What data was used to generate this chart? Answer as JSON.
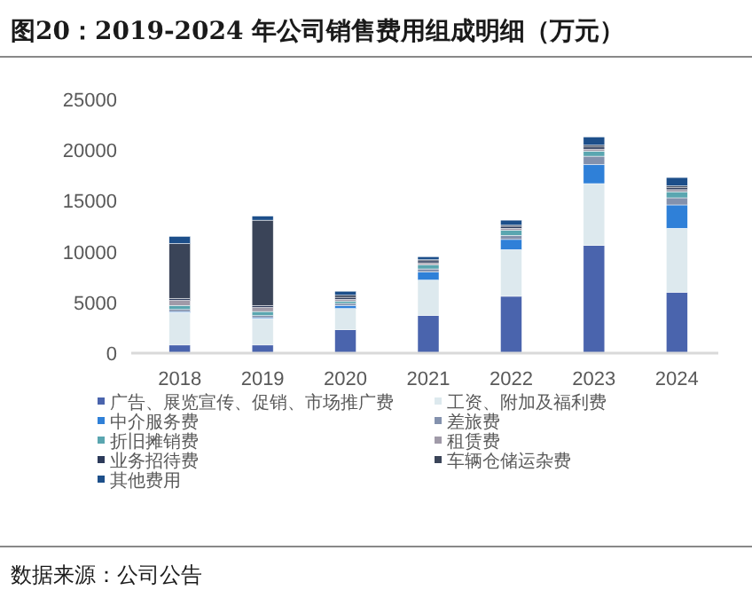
{
  "chart_data": {
    "type": "bar",
    "stacked": true,
    "title": "图20：2019-2024 年公司销售费用组成明细（万元）",
    "categories": [
      "2018",
      "2019",
      "2020",
      "2021",
      "2022",
      "2023",
      "2024"
    ],
    "series": [
      {
        "name": "广告、展览宣传、促销、市场推广费",
        "color": "#4a64ad",
        "values": [
          800,
          800,
          2300,
          3700,
          5600,
          10600,
          6000
        ]
      },
      {
        "name": "工资、附加及福利费",
        "color": "#dde9ee",
        "values": [
          3200,
          2600,
          2100,
          3500,
          4600,
          6100,
          6300
        ]
      },
      {
        "name": "中介服务费",
        "color": "#2f80d8",
        "values": [
          100,
          100,
          300,
          800,
          1000,
          1900,
          2300
        ]
      },
      {
        "name": "差旅费",
        "color": "#8391ad",
        "values": [
          200,
          200,
          200,
          300,
          400,
          800,
          700
        ]
      },
      {
        "name": "折旧摊销费",
        "color": "#5aa6b0",
        "values": [
          400,
          400,
          200,
          400,
          500,
          500,
          600
        ]
      },
      {
        "name": "租赁费",
        "color": "#a09aa8",
        "values": [
          500,
          400,
          200,
          200,
          200,
          200,
          200
        ]
      },
      {
        "name": "业务招待费",
        "color": "#2c3a5a",
        "values": [
          200,
          200,
          200,
          200,
          200,
          200,
          200
        ]
      },
      {
        "name": "车辆仓储运杂费",
        "color": "#3a4458",
        "values": [
          5400,
          8400,
          200,
          100,
          100,
          200,
          200
        ]
      },
      {
        "name": "其他费用",
        "color": "#1d4f8a",
        "values": [
          700,
          400,
          400,
          300,
          500,
          800,
          800
        ]
      }
    ],
    "ylim": [
      0,
      25000
    ],
    "yticks": [
      0,
      5000,
      10000,
      15000,
      20000,
      25000
    ],
    "legend": "bottom",
    "grid": false,
    "annotations": [
      "数据来源：公司公告"
    ]
  }
}
